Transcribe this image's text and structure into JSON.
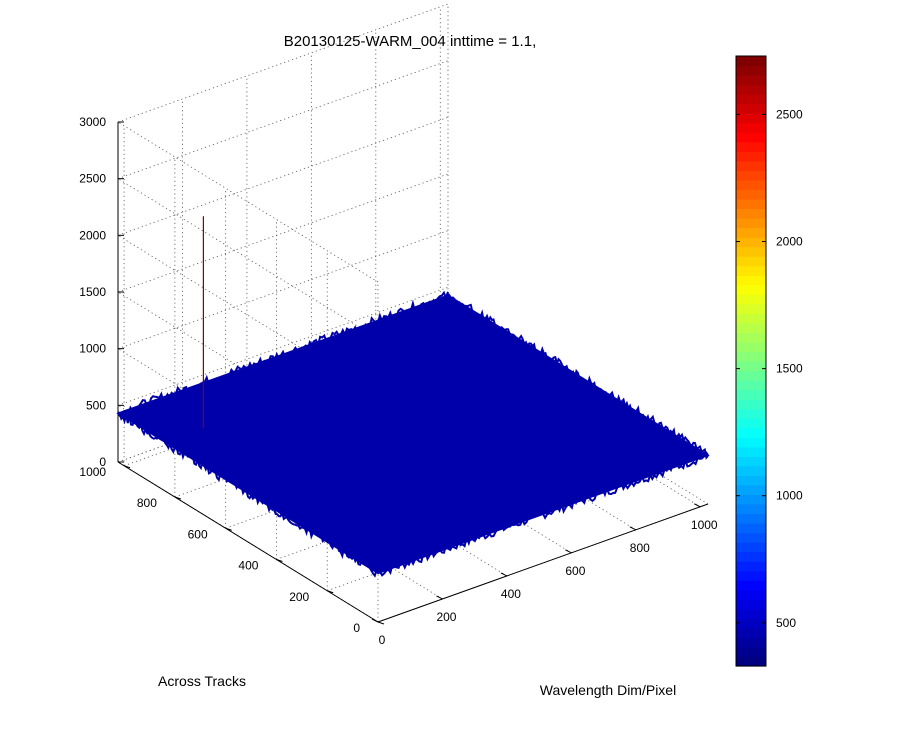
{
  "chart_data": {
    "type": "surface",
    "title": "B20130125-WARM_004 inttime = 1.1,",
    "xlabel": "Wavelength Dim/Pixel",
    "ylabel": "Across Tracks",
    "zlabel": "",
    "x_ticks": [
      "0",
      "200",
      "400",
      "600",
      "800",
      "1000"
    ],
    "y_ticks": [
      "0",
      "200",
      "400",
      "600",
      "800",
      "1000"
    ],
    "z_ticks": [
      "0",
      "500",
      "1000",
      "1500",
      "2000",
      "2500",
      "3000"
    ],
    "xlim": [
      0,
      1024
    ],
    "ylim": [
      0,
      1024
    ],
    "zlim": [
      0,
      3000
    ],
    "grid": true,
    "colormap": "jet",
    "colorbar": {
      "placement": "right",
      "limits": [
        330,
        2730
      ],
      "ticks": [
        "500",
        "1000",
        "1500",
        "2000",
        "2500"
      ]
    },
    "surface": {
      "baseline_level": 430,
      "noise_range": [
        390,
        470
      ],
      "spike": {
        "x": 120,
        "y": 840,
        "value": 2300
      }
    }
  }
}
